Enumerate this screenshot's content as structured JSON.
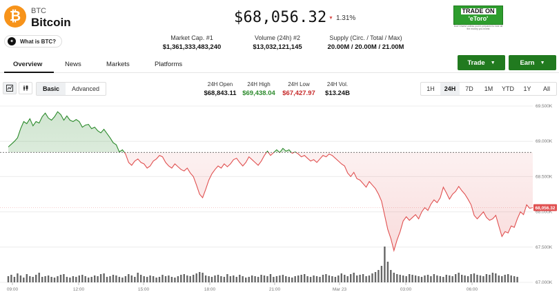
{
  "coin": {
    "symbol": "BTC",
    "name": "Bitcoin",
    "logo_glyph": "₿",
    "what_is_label": "What is BTC?"
  },
  "price": {
    "value": "$68,056.32",
    "change": "1.31%",
    "change_color": "#d9534f"
  },
  "stats": [
    {
      "label": "Market Cap. #1",
      "value": "$1,361,333,483,240"
    },
    {
      "label": "Volume (24h) #2",
      "value": "$13,032,121,145"
    },
    {
      "label": "Supply (Circ. / Total / Max)",
      "value": "20.00M / 20.00M / 21.00M"
    }
  ],
  "ad": {
    "line1": "TRADE ON",
    "line2": "'eToro'",
    "fine": "Don't invest unless you're prepared to lose all the money you invest"
  },
  "tabs": [
    "Overview",
    "News",
    "Markets",
    "Platforms"
  ],
  "buttons": {
    "trade": "Trade",
    "earn": "Earn"
  },
  "chart_modes": {
    "basic": "Basic",
    "advanced": "Advanced"
  },
  "ohlc": [
    {
      "label": "24H Open",
      "value": "$68,843.11",
      "color": "#111111"
    },
    {
      "label": "24H High",
      "value": "$69,438.04",
      "color": "#2b8a2b"
    },
    {
      "label": "24H Low",
      "value": "$67,427.97",
      "color": "#c62828"
    },
    {
      "label": "24H Vol.",
      "value": "$13.24B",
      "color": "#111111"
    }
  ],
  "ranges": [
    "1H",
    "24H",
    "7D",
    "1M",
    "YTD",
    "1Y",
    "All"
  ],
  "active_range": "24H",
  "chart_data": {
    "type": "line",
    "y_ticks": [
      "69.500K",
      "69.000K",
      "68.500K",
      "68.000K",
      "67.500K",
      "67.000K"
    ],
    "x_ticks": [
      "09:00",
      "12:00",
      "15:00",
      "18:00",
      "21:00",
      "Mar 23",
      "03:00",
      "06:00"
    ],
    "ylim": [
      67000,
      69500
    ],
    "baseline": 68843.11,
    "current_label": "68,056.32",
    "up_color": "#2b8a2b",
    "down_color": "#e05050",
    "prices": [
      68920,
      68960,
      69000,
      69050,
      69180,
      69280,
      69250,
      69320,
      69220,
      69280,
      69260,
      69350,
      69400,
      69330,
      69300,
      69350,
      69420,
      69380,
      69300,
      69360,
      69300,
      69280,
      69310,
      69280,
      69200,
      69230,
      69240,
      69180,
      69200,
      69150,
      69120,
      69170,
      69110,
      69050,
      68980,
      68950,
      68850,
      68880,
      68820,
      68700,
      68660,
      68720,
      68750,
      68700,
      68680,
      68620,
      68650,
      68720,
      68750,
      68800,
      68780,
      68700,
      68650,
      68620,
      68680,
      68640,
      68600,
      68580,
      68620,
      68550,
      68500,
      68380,
      68250,
      68200,
      68320,
      68450,
      68540,
      68600,
      68650,
      68620,
      68680,
      68640,
      68680,
      68740,
      68760,
      68700,
      68650,
      68700,
      68780,
      68740,
      68700,
      68660,
      68720,
      68800,
      68860,
      68800,
      68840,
      68880,
      68840,
      68900,
      68860,
      68880,
      68830,
      68850,
      68820,
      68780,
      68800,
      68760,
      68720,
      68740,
      68700,
      68750,
      68800,
      68780,
      68820,
      68800,
      68760,
      68720,
      68680,
      68650,
      68550,
      68500,
      68560,
      68470,
      68450,
      68400,
      68350,
      68430,
      68380,
      68330,
      68250,
      68150,
      67950,
      67750,
      67620,
      67450,
      67600,
      67720,
      67870,
      67930,
      67880,
      67920,
      67960,
      67900,
      68000,
      68060,
      68020,
      68110,
      68170,
      68130,
      68200,
      68350,
      68270,
      68180,
      68250,
      68290,
      68360,
      68300,
      68250,
      68180,
      68100,
      67950,
      67900,
      67950,
      68000,
      67920,
      67880,
      67900,
      67950,
      67800,
      67650,
      67720,
      67700,
      67800,
      67780,
      67900,
      68000,
      67960,
      68100,
      68050,
      68060
    ]
  }
}
